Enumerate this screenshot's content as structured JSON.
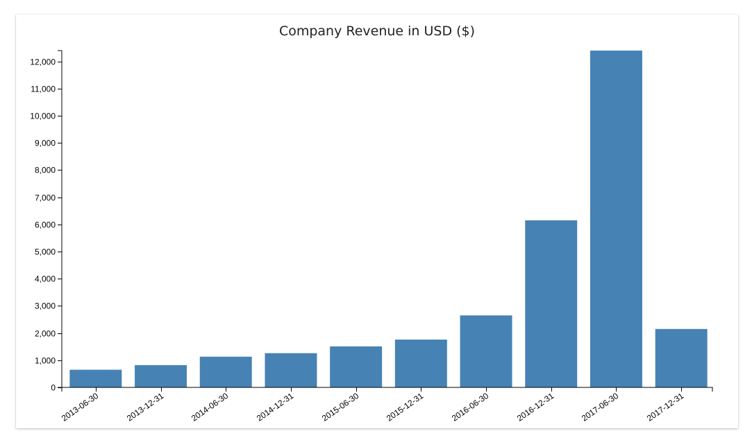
{
  "chart_data": {
    "type": "bar",
    "title": "Company Revenue in USD ($)",
    "xlabel": "",
    "ylabel": "",
    "categories": [
      "2013-06-30",
      "2013-12-31",
      "2014-06-30",
      "2014-12-31",
      "2015-06-30",
      "2015-12-31",
      "2016-06-30",
      "2016-12-31",
      "2017-06-30",
      "2017-12-31"
    ],
    "values": [
      650,
      820,
      1130,
      1260,
      1510,
      1760,
      2650,
      6150,
      12400,
      2150
    ],
    "ylim": [
      0,
      12400
    ],
    "yticks": [
      0,
      1000,
      2000,
      3000,
      4000,
      5000,
      6000,
      7000,
      8000,
      9000,
      10000,
      11000,
      12000
    ],
    "ytick_labels": [
      "0",
      "1,000",
      "2,000",
      "3,000",
      "4,000",
      "5,000",
      "6,000",
      "7,000",
      "8,000",
      "9,000",
      "10,000",
      "11,000",
      "12,000"
    ],
    "grid": false,
    "bar_color": "#4682b4"
  }
}
